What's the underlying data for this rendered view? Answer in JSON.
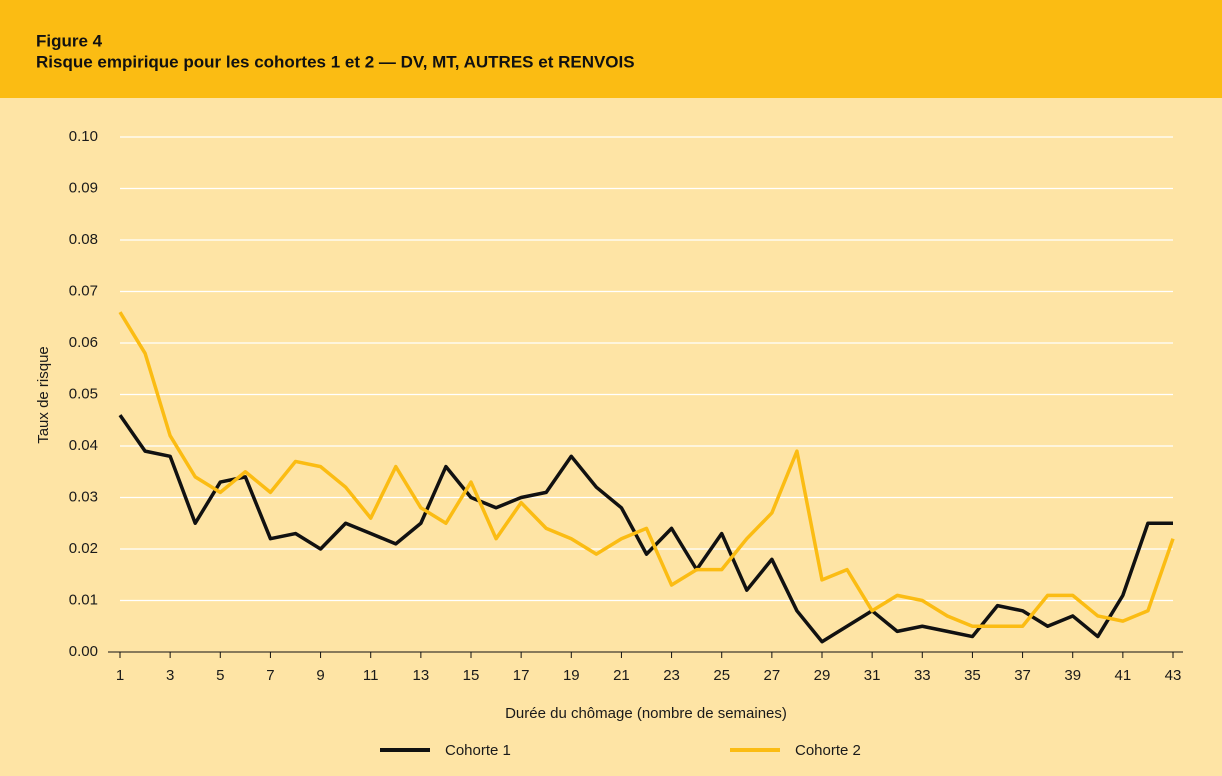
{
  "chart_data": {
    "type": "line",
    "figure": "Figure 4",
    "title": "Risque empirique pour les cohortes 1 et 2 — DV, MT, AUTRES et RENVOIS",
    "x_label": "Durée du chômage (nombre de semaines)",
    "y_label": "Taux de risque",
    "x": [
      1,
      2,
      3,
      4,
      5,
      6,
      7,
      8,
      9,
      10,
      11,
      12,
      13,
      14,
      15,
      16,
      17,
      18,
      19,
      20,
      21,
      22,
      23,
      24,
      25,
      26,
      27,
      28,
      29,
      30,
      31,
      32,
      33,
      34,
      35,
      36,
      37,
      38,
      39,
      40,
      41,
      42,
      43
    ],
    "series": [
      {
        "name": "Cohorte 1",
        "color": "#111111",
        "values": [
          0.046,
          0.039,
          0.038,
          0.025,
          0.033,
          0.034,
          0.022,
          0.023,
          0.02,
          0.025,
          0.023,
          0.021,
          0.025,
          0.036,
          0.03,
          0.028,
          0.03,
          0.031,
          0.038,
          0.032,
          0.028,
          0.019,
          0.024,
          0.016,
          0.023,
          0.012,
          0.018,
          0.008,
          0.002,
          0.005,
          0.008,
          0.004,
          0.005,
          0.004,
          0.003,
          0.009,
          0.008,
          0.005,
          0.007,
          0.003,
          0.011,
          0.025,
          0.025
        ]
      },
      {
        "name": "Cohorte 2",
        "color": "#fbbc13",
        "values": [
          0.066,
          0.058,
          0.042,
          0.034,
          0.031,
          0.035,
          0.031,
          0.037,
          0.036,
          0.032,
          0.026,
          0.036,
          0.028,
          0.025,
          0.033,
          0.022,
          0.029,
          0.024,
          0.022,
          0.019,
          0.022,
          0.024,
          0.013,
          0.016,
          0.016,
          0.022,
          0.027,
          0.039,
          0.014,
          0.016,
          0.008,
          0.011,
          0.01,
          0.007,
          0.005,
          0.005,
          0.005,
          0.011,
          0.011,
          0.007,
          0.006,
          0.008,
          0.022
        ]
      }
    ],
    "xlim": [
      1,
      43
    ],
    "xticks": [
      1,
      3,
      5,
      7,
      9,
      11,
      13,
      15,
      17,
      19,
      21,
      23,
      25,
      27,
      29,
      31,
      33,
      35,
      37,
      39,
      41,
      43
    ],
    "ylim": [
      0,
      0.1
    ],
    "yticks": [
      {
        "value": 0,
        "label": "0.00"
      },
      {
        "value": 0.01,
        "label": "0.01"
      },
      {
        "value": 0.02,
        "label": "0.02"
      },
      {
        "value": 0.03,
        "label": "0.03"
      },
      {
        "value": 0.04,
        "label": "0.04"
      },
      {
        "value": 0.05,
        "label": "0.05"
      },
      {
        "value": 0.06,
        "label": "0.06"
      },
      {
        "value": 0.07,
        "label": "0.07"
      },
      {
        "value": 0.08,
        "label": "0.08"
      },
      {
        "value": 0.09,
        "label": "0.09"
      },
      {
        "value": 0.1,
        "label": "0.10"
      }
    ],
    "grid": true,
    "legend": "bottom"
  }
}
